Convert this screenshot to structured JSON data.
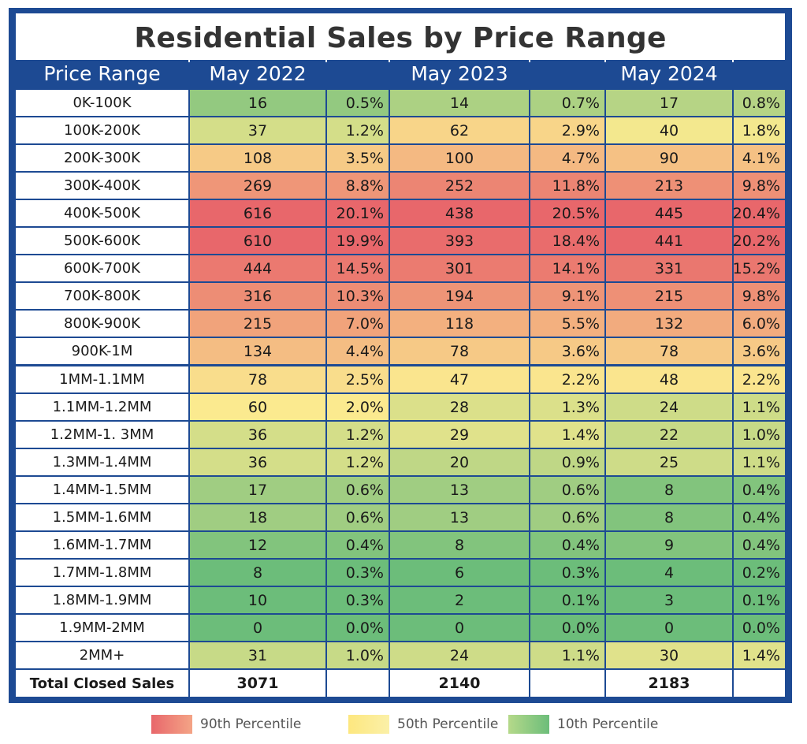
{
  "chart_data": {
    "type": "table",
    "title": "Residential Sales by Price Range",
    "columns": [
      "Price Range",
      "May 2022",
      "",
      "May 2023",
      "",
      "May 2024",
      ""
    ],
    "rows": [
      {
        "range": "0K-100K",
        "v2022": 16,
        "p2022": "0.5%",
        "v2023": 14,
        "p2023": "0.7%",
        "v2024": 17,
        "p2024": "0.8%"
      },
      {
        "range": "100K-200K",
        "v2022": 37,
        "p2022": "1.2%",
        "v2023": 62,
        "p2023": "2.9%",
        "v2024": 40,
        "p2024": "1.8%"
      },
      {
        "range": "200K-300K",
        "v2022": 108,
        "p2022": "3.5%",
        "v2023": 100,
        "p2023": "4.7%",
        "v2024": 90,
        "p2024": "4.1%"
      },
      {
        "range": "300K-400K",
        "v2022": 269,
        "p2022": "8.8%",
        "v2023": 252,
        "p2023": "11.8%",
        "v2024": 213,
        "p2024": "9.8%"
      },
      {
        "range": "400K-500K",
        "v2022": 616,
        "p2022": "20.1%",
        "v2023": 438,
        "p2023": "20.5%",
        "v2024": 445,
        "p2024": "20.4%"
      },
      {
        "range": "500K-600K",
        "v2022": 610,
        "p2022": "19.9%",
        "v2023": 393,
        "p2023": "18.4%",
        "v2024": 441,
        "p2024": "20.2%"
      },
      {
        "range": "600K-700K",
        "v2022": 444,
        "p2022": "14.5%",
        "v2023": 301,
        "p2023": "14.1%",
        "v2024": 331,
        "p2024": "15.2%"
      },
      {
        "range": "700K-800K",
        "v2022": 316,
        "p2022": "10.3%",
        "v2023": 194,
        "p2023": "9.1%",
        "v2024": 215,
        "p2024": "9.8%"
      },
      {
        "range": "800K-900K",
        "v2022": 215,
        "p2022": "7.0%",
        "v2023": 118,
        "p2023": "5.5%",
        "v2024": 132,
        "p2024": "6.0%"
      },
      {
        "range": "900K-1M",
        "v2022": 134,
        "p2022": "4.4%",
        "v2023": 78,
        "p2023": "3.6%",
        "v2024": 78,
        "p2024": "3.6%"
      },
      {
        "range": "1MM-1.1MM",
        "v2022": 78,
        "p2022": "2.5%",
        "v2023": 47,
        "p2023": "2.2%",
        "v2024": 48,
        "p2024": "2.2%"
      },
      {
        "range": "1.1MM-1.2MM",
        "v2022": 60,
        "p2022": "2.0%",
        "v2023": 28,
        "p2023": "1.3%",
        "v2024": 24,
        "p2024": "1.1%"
      },
      {
        "range": "1.2MM-1. 3MM",
        "v2022": 36,
        "p2022": "1.2%",
        "v2023": 29,
        "p2023": "1.4%",
        "v2024": 22,
        "p2024": "1.0%"
      },
      {
        "range": "1.3MM-1.4MM",
        "v2022": 36,
        "p2022": "1.2%",
        "v2023": 20,
        "p2023": "0.9%",
        "v2024": 25,
        "p2024": "1.1%"
      },
      {
        "range": "1.4MM-1.5MM",
        "v2022": 17,
        "p2022": "0.6%",
        "v2023": 13,
        "p2023": "0.6%",
        "v2024": 8,
        "p2024": "0.4%"
      },
      {
        "range": "1.5MM-1.6MM",
        "v2022": 18,
        "p2022": "0.6%",
        "v2023": 13,
        "p2023": "0.6%",
        "v2024": 8,
        "p2024": "0.4%"
      },
      {
        "range": "1.6MM-1.7MM",
        "v2022": 12,
        "p2022": "0.4%",
        "v2023": 8,
        "p2023": "0.4%",
        "v2024": 9,
        "p2024": "0.4%"
      },
      {
        "range": "1.7MM-1.8MM",
        "v2022": 8,
        "p2022": "0.3%",
        "v2023": 6,
        "p2023": "0.3%",
        "v2024": 4,
        "p2024": "0.2%"
      },
      {
        "range": "1.8MM-1.9MM",
        "v2022": 10,
        "p2022": "0.3%",
        "v2023": 2,
        "p2023": "0.1%",
        "v2024": 3,
        "p2024": "0.1%"
      },
      {
        "range": "1.9MM-2MM",
        "v2022": 0,
        "p2022": "0.0%",
        "v2023": 0,
        "p2023": "0.0%",
        "v2024": 0,
        "p2024": "0.0%"
      },
      {
        "range": "2MM+",
        "v2022": 31,
        "p2022": "1.0%",
        "v2023": 24,
        "p2023": "1.1%",
        "v2024": 30,
        "p2024": "1.4%"
      }
    ],
    "totals": {
      "label": "Total Closed Sales",
      "v2022": 3071,
      "v2023": 2140,
      "v2024": 2183
    },
    "legend": [
      {
        "label": "90th Percentile",
        "color": "#e8676b"
      },
      {
        "label": "50th Percentile",
        "color": "#fbea8f"
      },
      {
        "label": "10th Percentile",
        "color": "#6cbd7a"
      }
    ],
    "colors": {
      "frame": "#1d4a93",
      "low": "#6cbd7a",
      "mid": "#fbea8f",
      "high": "#e8676b"
    }
  }
}
